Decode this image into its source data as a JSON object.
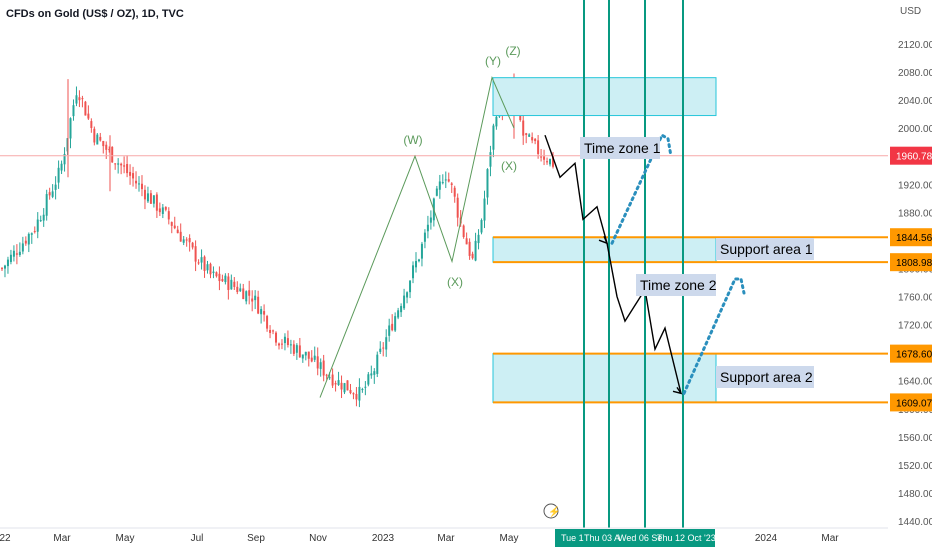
{
  "title": "CFDs on Gold (US$ / OZ), 1D, TVC",
  "currency": "USD",
  "colors": {
    "up": "#26a69a",
    "down": "#ef5350",
    "zone_fill": "#cdeff4",
    "zone_border": "#26c6da",
    "support_line": "#ff9800",
    "time_line": "#089981",
    "wave": "#5b9a5b",
    "price_line": "#f7a9a9",
    "price_label": "#f23645",
    "projection": "#2a8fbd"
  },
  "chart_data": {
    "type": "candlestick",
    "y_axis": {
      "min": 1440,
      "max": 2160,
      "ticks": [
        2120,
        2080,
        2040,
        2000,
        1960,
        1920,
        1880,
        1840,
        1800,
        1760,
        1720,
        1680,
        1640,
        1600,
        1560,
        1520,
        1480,
        1440
      ]
    },
    "x_ticks": [
      "22",
      "Mar",
      "May",
      "Jul",
      "Sep",
      "Nov",
      "2023",
      "Mar",
      "May",
      "2024",
      "Mar"
    ],
    "date_labels": [
      "Tue 1",
      "Thu 03 A",
      "Wed 06 Se",
      "Thu 12 Oct '23"
    ],
    "current_price": "1960.78",
    "price_labels": [
      "1844.56",
      "1808.98",
      "1678.60",
      "1609.07"
    ],
    "wave_labels": [
      "(W)",
      "(X)",
      "(Y)",
      "(Z)",
      "(X)"
    ],
    "wave_points": [
      [
        1616,
        1960
      ],
      [
        1810,
        1995
      ],
      [
        2072,
        2055
      ]
    ],
    "price_path": [
      [
        1800,
        0
      ],
      [
        1830,
        10
      ],
      [
        1860,
        20
      ],
      [
        1940,
        35
      ],
      [
        2060,
        45
      ],
      [
        1990,
        55
      ],
      [
        1950,
        70
      ],
      [
        1910,
        85
      ],
      [
        1870,
        100
      ],
      [
        1830,
        112
      ],
      [
        1790,
        125
      ],
      [
        1780,
        135
      ],
      [
        1760,
        150
      ],
      [
        1700,
        165
      ],
      [
        1680,
        180
      ],
      [
        1660,
        190
      ],
      [
        1640,
        200
      ],
      [
        1620,
        215
      ],
      [
        1650,
        222
      ],
      [
        1700,
        230
      ],
      [
        1760,
        240
      ],
      [
        1820,
        250
      ],
      [
        1900,
        260
      ],
      [
        1940,
        265
      ],
      [
        1910,
        270
      ],
      [
        1860,
        275
      ],
      [
        1810,
        282
      ],
      [
        1880,
        288
      ],
      [
        1980,
        293
      ],
      [
        2040,
        297
      ],
      [
        2020,
        302
      ],
      [
        2060,
        306
      ],
      [
        1990,
        312
      ],
      [
        1970,
        320
      ],
      [
        1950,
        330
      ]
    ],
    "rect_zones": [
      {
        "top": 2072,
        "bottom": 2018
      },
      {
        "top": 1844.56,
        "bottom": 1808.98
      },
      {
        "top": 1678.6,
        "bottom": 1609.07
      }
    ],
    "support_levels": [
      1844.56,
      1808.98,
      1678.6,
      1609.07
    ],
    "annotations": [
      "Time zone 1",
      "Support area 1",
      "Time zone 2",
      "Support area 2"
    ],
    "projection_path": [
      [
        1990,
        0
      ],
      [
        1930,
        1
      ],
      [
        1950,
        2
      ],
      [
        1870,
        3
      ],
      [
        1888,
        4
      ],
      [
        1836,
        5
      ],
      [
        1760,
        6
      ],
      [
        1725,
        7
      ],
      [
        1770,
        8
      ],
      [
        1685,
        9
      ],
      [
        1715,
        10
      ],
      [
        1622,
        11
      ]
    ],
    "projection_dots": [
      [
        [
          1836,
          0
        ],
        [
          1990,
          1
        ],
        [
          1985,
          2
        ],
        [
          1960,
          3
        ]
      ],
      [
        [
          1622,
          0
        ],
        [
          1785,
          1
        ],
        [
          1785,
          2
        ],
        [
          1765,
          3
        ]
      ]
    ]
  }
}
